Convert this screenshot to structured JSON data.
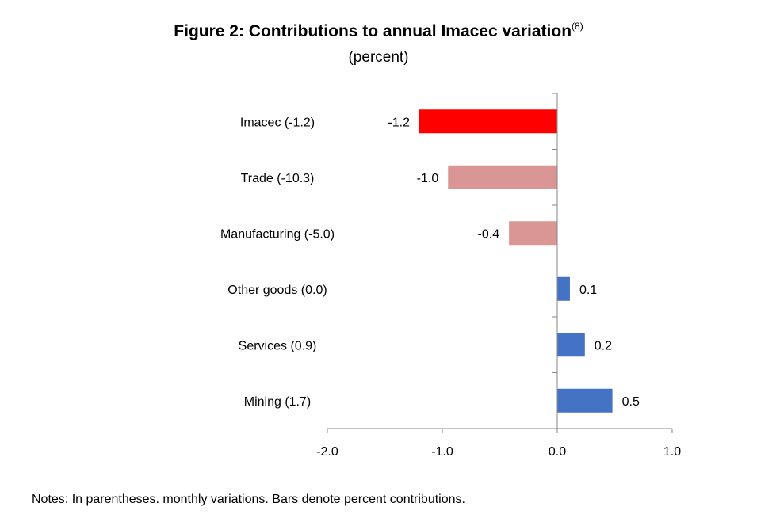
{
  "chart_data": {
    "type": "bar",
    "orientation": "horizontal",
    "title": "Figure 2: Contributions to annual Imacec variation",
    "title_superscript": "(8)",
    "subtitle": "(percent)",
    "categories": [
      "Imacec (-1.2)",
      "Trade (-10.3)",
      "Manufacturing (-5.0)",
      "Other goods (0.0)",
      "Services (0.9)",
      "Mining (1.7)"
    ],
    "values": [
      -1.2,
      -0.95,
      -0.42,
      0.11,
      0.24,
      0.48
    ],
    "data_labels": [
      "-1.2",
      "-1.0",
      "-0.4",
      "0.1",
      "0.2",
      "0.5"
    ],
    "bar_colors": [
      "#ff0000",
      "#d99694",
      "#d99694",
      "#4472c4",
      "#4472c4",
      "#4472c4"
    ],
    "xlim": [
      -2.0,
      1.0
    ],
    "xticks": [
      -2.0,
      -1.0,
      0.0,
      1.0
    ],
    "xtick_labels": [
      "-2.0",
      "-1.0",
      "0.0",
      "1.0"
    ],
    "xlabel": "",
    "ylabel": "",
    "grid": false,
    "legend": "none"
  },
  "notes": "Notes: In parentheses. monthly variations. Bars denote percent contributions."
}
